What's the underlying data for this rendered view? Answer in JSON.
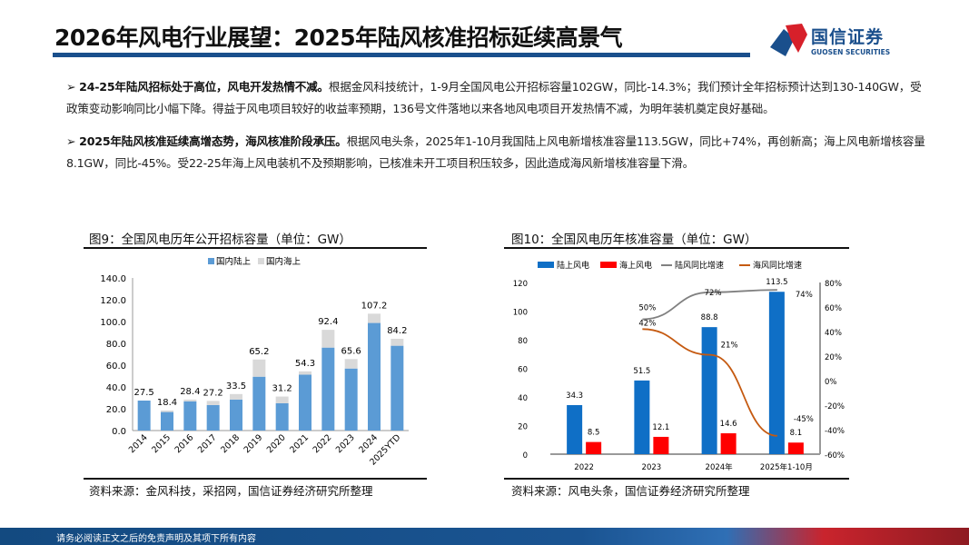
{
  "header": {
    "title": "2026年风电行业展望：2025年陆风核准招标延续高景气",
    "logo_text": "国信证券",
    "logo_sub": "GUOSEN SECURITIES"
  },
  "bullets": [
    {
      "bold": "24-25年陆风招标处于高位，风电开发热情不减。",
      "text": "根据金风科技统计，1-9月全国风电公开招标容量102GW，同比-14.3%；我们预计全年招标预计达到130-140GW，受政策变动影响同比小幅下降。得益于风电项目较好的收益率预期，136号文件落地以来各地风电项目开发热情不减，为明年装机奠定良好基础。"
    },
    {
      "bold": "2025年陆风核准延续高增态势，海风核准阶段承压。",
      "text": "根据风电头条，2025年1-10月我国陆上风电新增核准容量113.5GW，同比+74%，再创新高；海上风电新增核容量8.1GW，同比-45%。受22-25年海上风电装机不及预期影响，已核准未开工项目积压较多，因此造成海风新增核准容量下滑。"
    }
  ],
  "footer": "请务必阅读正文之后的免责声明及其项下所有内容",
  "chart_data": [
    {
      "type": "bar",
      "stacked": true,
      "title": "图9：全国风电历年公开招标容量（单位：GW）",
      "categories": [
        "2014",
        "2015",
        "2016",
        "2017",
        "2018",
        "2019",
        "2020",
        "2021",
        "2022",
        "2023",
        "2024",
        "2025YTD"
      ],
      "series": [
        {
          "name": "国内陆上",
          "color": "#5b9bd5",
          "values": [
            27.5,
            17.0,
            26.8,
            23.4,
            28.4,
            49.4,
            25.1,
            51.3,
            76.1,
            56.9,
            98.7,
            77.8
          ]
        },
        {
          "name": "国内海上",
          "color": "#d9d9d9",
          "values": [
            0,
            1.4,
            1.6,
            3.8,
            5.1,
            15.8,
            6.1,
            3.0,
            16.3,
            8.7,
            8.5,
            6.4
          ]
        }
      ],
      "totals": [
        "27.5",
        "18.4",
        "28.4",
        "27.2",
        "33.5",
        "65.2",
        "31.2",
        "54.3",
        "92.4",
        "65.6",
        "107.2",
        "84.2"
      ],
      "ylim": [
        0,
        140
      ],
      "yticks": [
        "0.0",
        "20.0",
        "40.0",
        "60.0",
        "80.0",
        "100.0",
        "120.0",
        "140.0"
      ],
      "legend": "top",
      "grid": false,
      "source": "资料来源：金风科技，采招网，国信证券经济研究所整理"
    },
    {
      "type": "bar+line",
      "title": "图10：全国风电历年核准容量（单位：GW）",
      "categories": [
        "2022",
        "2023",
        "2024年",
        "2025年1-10月"
      ],
      "series": [
        {
          "name": "陆上风电",
          "color": "#0f6fc6",
          "values": [
            34.3,
            51.5,
            88.8,
            113.5
          ],
          "labels": [
            "34.3",
            "51.5",
            "88.8",
            "113.5"
          ]
        },
        {
          "name": "海上风电",
          "color": "#ff0000",
          "values": [
            8.5,
            12.1,
            14.6,
            8.1
          ],
          "labels": [
            "8.5",
            "12.1",
            "14.6",
            "8.1"
          ]
        },
        {
          "name": "陆风同比增速",
          "color": "#808080",
          "axis": "right",
          "values": [
            null,
            50,
            72,
            74
          ],
          "labels": [
            "",
            "50%",
            "72%",
            "74%"
          ]
        },
        {
          "name": "海风同比增速",
          "color": "#c55a11",
          "axis": "right",
          "values": [
            null,
            42,
            21,
            -45
          ],
          "labels": [
            "",
            "42%",
            "21%",
            "-45%"
          ]
        }
      ],
      "ylim": [
        0,
        120
      ],
      "yticks": [
        "0",
        "20",
        "40",
        "60",
        "80",
        "100",
        "120"
      ],
      "y2lim": [
        -60,
        80
      ],
      "y2ticks": [
        "-60%",
        "-40%",
        "-20%",
        "0%",
        "20%",
        "40%",
        "60%",
        "80%"
      ],
      "legend": "top",
      "grid": false,
      "source": "资料来源：风电头条，国信证券经济研究所整理"
    }
  ]
}
